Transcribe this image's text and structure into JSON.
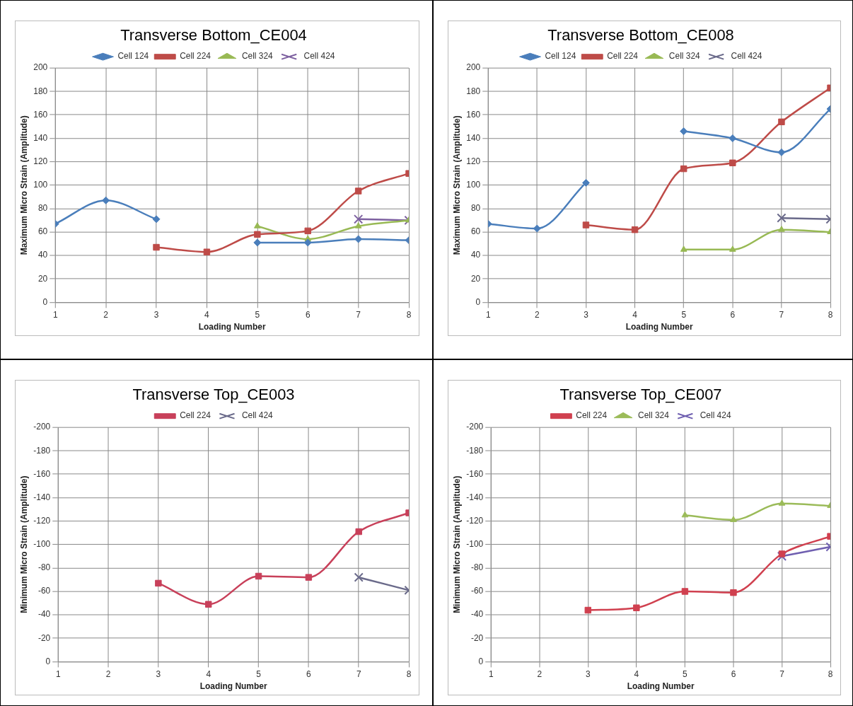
{
  "chart_data": [
    {
      "type": "line",
      "title": "Transverse Bottom_CE004",
      "xlabel": "Loading Number",
      "ylabel": "Maximum Micro Strain (Amplitude)",
      "xlim": [
        1,
        8
      ],
      "xticks": [
        1,
        2,
        3,
        4,
        5,
        6,
        7,
        8
      ],
      "ylim": [
        0,
        200
      ],
      "yticks": [
        0,
        20,
        40,
        60,
        80,
        100,
        120,
        140,
        160,
        180,
        200
      ],
      "grid": true,
      "legend": "top",
      "series": [
        {
          "name": "Cell 124",
          "color": "#4a7ebb",
          "marker": "diamond",
          "x": [
            1,
            2,
            3,
            4,
            5,
            6,
            7,
            8
          ],
          "values": [
            67,
            87,
            71,
            null,
            51,
            51,
            54,
            53
          ]
        },
        {
          "name": "Cell 224",
          "color": "#be4b48",
          "marker": "square",
          "x": [
            3,
            4,
            5,
            6,
            7,
            8
          ],
          "values": [
            47,
            43,
            58,
            61,
            95,
            110
          ]
        },
        {
          "name": "Cell 324",
          "color": "#98b954",
          "marker": "triangle",
          "x": [
            5,
            6,
            7,
            8
          ],
          "values": [
            65,
            54,
            65,
            70
          ]
        },
        {
          "name": "Cell 424",
          "color": "#7d60a0",
          "marker": "cross",
          "x": [
            7,
            8
          ],
          "values": [
            71,
            70
          ]
        }
      ]
    },
    {
      "type": "line",
      "title": "Transverse Bottom_CE008",
      "xlabel": "Loading Number",
      "ylabel": "Maximum Micro Strain (Amplitude)",
      "xlim": [
        1,
        8
      ],
      "xticks": [
        1,
        2,
        3,
        4,
        5,
        6,
        7,
        8
      ],
      "ylim": [
        0,
        200
      ],
      "yticks": [
        0,
        20,
        40,
        60,
        80,
        100,
        120,
        140,
        160,
        180,
        200
      ],
      "grid": true,
      "legend": "top",
      "series": [
        {
          "name": "Cell 124",
          "color": "#4a7ebb",
          "marker": "diamond",
          "x": [
            1,
            2,
            3,
            4,
            5,
            6,
            7,
            8
          ],
          "values": [
            67,
            63,
            102,
            null,
            146,
            140,
            128,
            165
          ]
        },
        {
          "name": "Cell 224",
          "color": "#be4b48",
          "marker": "square",
          "x": [
            3,
            4,
            5,
            6,
            7,
            8
          ],
          "values": [
            66,
            62,
            114,
            119,
            154,
            183
          ]
        },
        {
          "name": "Cell 324",
          "color": "#98b954",
          "marker": "triangle",
          "x": [
            5,
            6,
            7,
            8
          ],
          "values": [
            45,
            45,
            62,
            60
          ]
        },
        {
          "name": "Cell 424",
          "color": "#6a6a8a",
          "marker": "cross",
          "x": [
            7,
            8
          ],
          "values": [
            72,
            71
          ]
        }
      ]
    },
    {
      "type": "line",
      "title": "Transverse Top_CE003",
      "xlabel": "Loading Number",
      "ylabel": "Minimum Micro Strain (Amplitude)",
      "xlim": [
        1,
        8
      ],
      "xticks": [
        1,
        2,
        3,
        4,
        5,
        6,
        7,
        8
      ],
      "ylim": [
        0,
        -200
      ],
      "yticks": [
        0,
        -20,
        -40,
        -60,
        -80,
        -100,
        -120,
        -140,
        -160,
        -180,
        -200
      ],
      "grid": true,
      "legend": "top",
      "series": [
        {
          "name": "Cell 224",
          "color": "#c8405a",
          "marker": "square",
          "x": [
            3,
            4,
            5,
            6,
            7,
            8
          ],
          "values": [
            -67,
            -49,
            -73,
            -72,
            -111,
            -127
          ]
        },
        {
          "name": "Cell 424",
          "color": "#6a6a8a",
          "marker": "cross",
          "x": [
            7,
            8
          ],
          "values": [
            -72,
            -61
          ]
        }
      ]
    },
    {
      "type": "line",
      "title": "Transverse Top_CE007",
      "xlabel": "Loading Number",
      "ylabel": "Minimum Micro Strain (Amplitude)",
      "xlim": [
        1,
        8
      ],
      "xticks": [
        1,
        2,
        3,
        4,
        5,
        6,
        7,
        8
      ],
      "ylim": [
        0,
        -200
      ],
      "yticks": [
        0,
        -20,
        -40,
        -60,
        -80,
        -100,
        -120,
        -140,
        -160,
        -180,
        -200
      ],
      "grid": true,
      "legend": "top",
      "series": [
        {
          "name": "Cell 224",
          "color": "#d0404f",
          "marker": "square",
          "x": [
            3,
            4,
            5,
            6,
            7,
            8
          ],
          "values": [
            -44,
            -46,
            -60,
            -59,
            -92,
            -107
          ]
        },
        {
          "name": "Cell 324",
          "color": "#9bbb59",
          "marker": "triangle",
          "x": [
            5,
            6,
            7,
            8
          ],
          "values": [
            -125,
            -121,
            -135,
            -133
          ]
        },
        {
          "name": "Cell 424",
          "color": "#6f5fb0",
          "marker": "cross",
          "x": [
            7,
            8
          ],
          "values": [
            -90,
            -98
          ]
        }
      ]
    }
  ]
}
